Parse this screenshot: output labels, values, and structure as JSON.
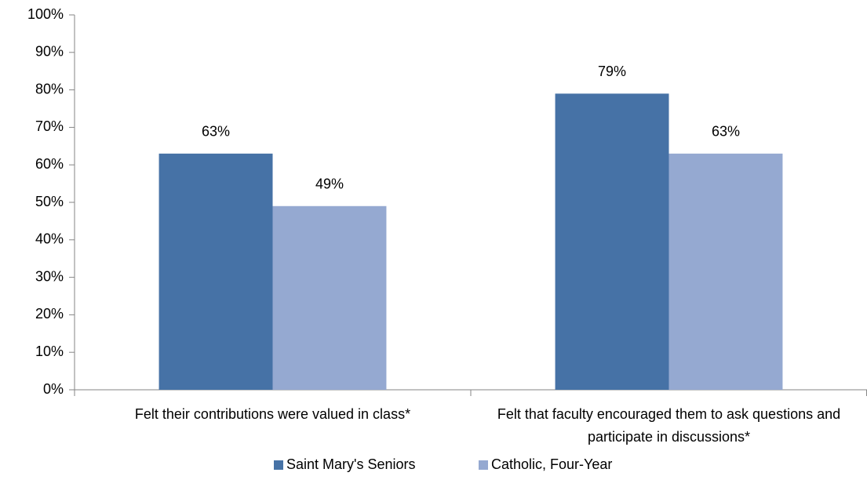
{
  "chart_data": {
    "type": "bar",
    "categories": [
      "Felt their contributions were valued in class*",
      "Felt that faculty encouraged them to ask questions and participate in discussions*"
    ],
    "series": [
      {
        "name": "Saint Mary's Seniors",
        "color": "#4672a6",
        "values": [
          63,
          79
        ],
        "value_labels": [
          "63%",
          "79%"
        ]
      },
      {
        "name": "Catholic, Four-Year",
        "color": "#95a9d1",
        "values": [
          49,
          63
        ],
        "value_labels": [
          "49%",
          "63%"
        ]
      }
    ],
    "ylim": [
      0,
      100
    ],
    "yticks": [
      {
        "value": 0,
        "label": "0%"
      },
      {
        "value": 10,
        "label": "10%"
      },
      {
        "value": 20,
        "label": "20%"
      },
      {
        "value": 30,
        "label": "30%"
      },
      {
        "value": 40,
        "label": "40%"
      },
      {
        "value": 50,
        "label": "50%"
      },
      {
        "value": 60,
        "label": "60%"
      },
      {
        "value": 70,
        "label": "70%"
      },
      {
        "value": 80,
        "label": "80%"
      },
      {
        "value": 90,
        "label": "90%"
      },
      {
        "value": 100,
        "label": "100%"
      }
    ],
    "grid": false,
    "legend": "bottom"
  }
}
